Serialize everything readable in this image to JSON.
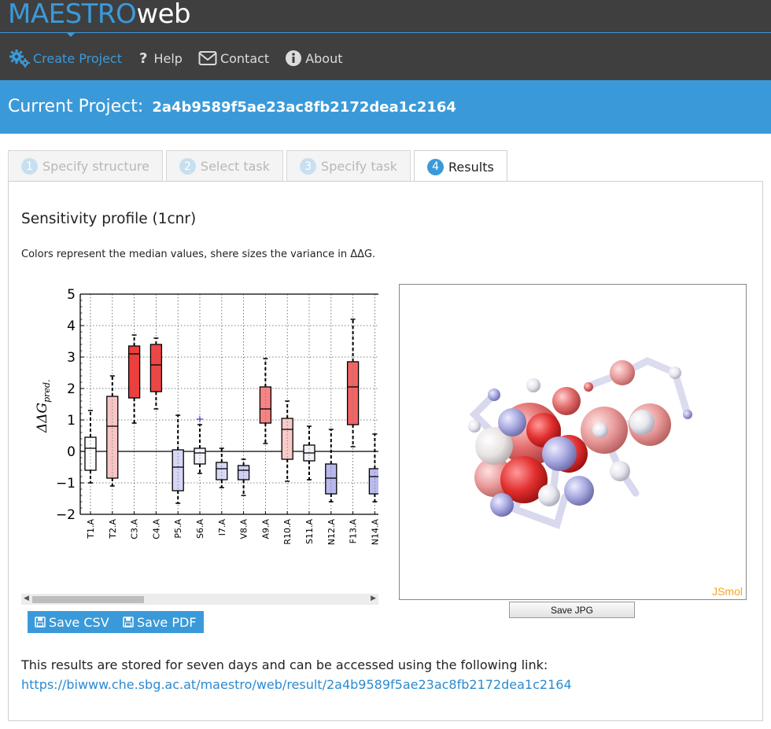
{
  "header": {
    "brand_part1": "MAESTRO",
    "brand_part2": "web",
    "nav": [
      {
        "label": "Create Project",
        "icon": "gears-icon",
        "active": true
      },
      {
        "label": "Help",
        "icon": "question-icon"
      },
      {
        "label": "Contact",
        "icon": "envelope-icon"
      },
      {
        "label": "About",
        "icon": "info-icon"
      }
    ]
  },
  "project": {
    "title": "Current Project:",
    "id": "2a4b9589f5ae23ac8fb2172dea1c2164"
  },
  "tabs": [
    {
      "num": "1",
      "label": "Specify structure"
    },
    {
      "num": "2",
      "label": "Select task"
    },
    {
      "num": "3",
      "label": "Specify task"
    },
    {
      "num": "4",
      "label": "Results",
      "active": true
    }
  ],
  "results": {
    "title": "Sensitivity profile (1cnr)",
    "description": "Colors represent the median values, shere sizes the variance in ΔΔG.",
    "save_csv": "Save CSV",
    "save_pdf": "Save PDF",
    "save_jpg": "Save JPG",
    "jsmol_label": "JSmol",
    "footnote": "This results are stored for seven days and can be accessed using the following link:",
    "link": "https://biwww.che.sbg.ac.at/maestro/web/result/2a4b9589f5ae23ac8fb2172dea1c2164"
  },
  "colors": {
    "accent": "#3a9ad9",
    "header_bg": "#3f3f3f",
    "high": "#f03c3c",
    "low": "#c8c8f0"
  },
  "chart_data": {
    "type": "box",
    "ylabel": "ΔΔG",
    "ylabel_sub": "pred.",
    "ylim": [
      -2,
      5
    ],
    "yticks": [
      "−2",
      "−1",
      "0",
      "1",
      "2",
      "3",
      "4",
      "5"
    ],
    "grid": true,
    "categories": [
      "T1.A",
      "T2.A",
      "C3.A",
      "C4.A",
      "P5.A",
      "S6.A",
      "I7.A",
      "V8.A",
      "A9.A",
      "R10.A",
      "S11.A",
      "N12.A",
      "F13.A",
      "N14.A"
    ],
    "boxes": [
      {
        "min": -1.0,
        "q1": -0.6,
        "median": 0.1,
        "q3": 0.45,
        "max": 1.3,
        "fill": "#ffffff"
      },
      {
        "min": -1.1,
        "q1": -0.85,
        "median": 0.8,
        "q3": 1.75,
        "max": 2.4,
        "fill": "#f8c4c4"
      },
      {
        "min": 0.9,
        "q1": 1.7,
        "median": 3.1,
        "q3": 3.35,
        "max": 3.7,
        "fill": "#f23c3c"
      },
      {
        "min": 1.35,
        "q1": 1.9,
        "median": 2.75,
        "q3": 3.4,
        "max": 3.6,
        "fill": "#f24444"
      },
      {
        "min": -1.65,
        "q1": -1.25,
        "median": -0.5,
        "q3": 0.05,
        "max": 1.15,
        "fill": "#d6d6f6"
      },
      {
        "min": -0.7,
        "q1": -0.4,
        "median": -0.05,
        "q3": 0.1,
        "max": 0.85,
        "fill": "#f2f2fc",
        "outliers": [
          1.05
        ]
      },
      {
        "min": -1.15,
        "q1": -0.9,
        "median": -0.55,
        "q3": -0.35,
        "max": 0.1,
        "fill": "#d8d8f6"
      },
      {
        "min": -1.4,
        "q1": -0.9,
        "median": -0.6,
        "q3": -0.45,
        "max": -0.25,
        "fill": "#cfcff4"
      },
      {
        "min": 0.25,
        "q1": 0.9,
        "median": 1.35,
        "q3": 2.05,
        "max": 2.95,
        "fill": "#f48484"
      },
      {
        "min": -0.95,
        "q1": -0.25,
        "median": 0.7,
        "q3": 1.05,
        "max": 1.6,
        "fill": "#f8caca"
      },
      {
        "min": -0.9,
        "q1": -0.3,
        "median": -0.05,
        "q3": 0.2,
        "max": 0.8,
        "fill": "#f2f2fa"
      },
      {
        "min": -1.6,
        "q1": -1.35,
        "median": -0.85,
        "q3": -0.4,
        "max": 0.7,
        "fill": "#b8b8ee"
      },
      {
        "min": 0.15,
        "q1": 0.85,
        "median": 2.05,
        "q3": 2.85,
        "max": 4.2,
        "fill": "#f26464"
      },
      {
        "min": -1.6,
        "q1": -1.35,
        "median": -0.8,
        "q3": -0.55,
        "max": 0.55,
        "fill": "#babaee"
      }
    ]
  }
}
